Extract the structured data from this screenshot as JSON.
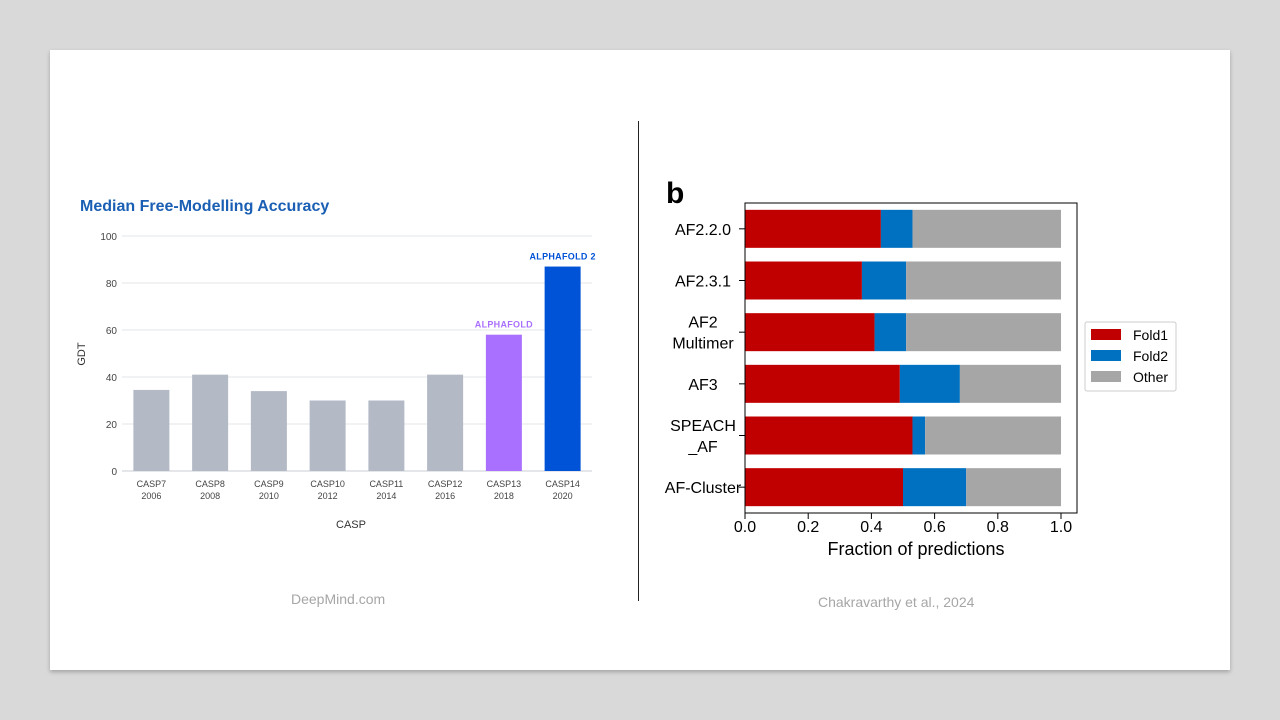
{
  "slide": {
    "left_caption": "DeepMind.com",
    "right_caption": "Chakravarthy et al., 2024"
  },
  "chart_data": [
    {
      "type": "bar",
      "title": "Median Free-Modelling Accuracy",
      "xlabel": "CASP",
      "ylabel": "GDT",
      "ylim": [
        0,
        100
      ],
      "yticks": [
        "0",
        "20",
        "40",
        "60",
        "80",
        "100"
      ],
      "categories": [
        [
          "CASP7",
          "2006"
        ],
        [
          "CASP8",
          "2008"
        ],
        [
          "CASP9",
          "2010"
        ],
        [
          "CASP10",
          "2012"
        ],
        [
          "CASP11",
          "2014"
        ],
        [
          "CASP12",
          "2016"
        ],
        [
          "CASP13",
          "2018"
        ],
        [
          "CASP14",
          "2020"
        ]
      ],
      "values": [
        34.5,
        41,
        34,
        30,
        30,
        41,
        58,
        87
      ],
      "bar_colors": [
        "#b3bac6",
        "#b3bac6",
        "#b3bac6",
        "#b3bac6",
        "#b3bac6",
        "#b3bac6",
        "#a970ff",
        "#0053d6"
      ],
      "annotations": [
        {
          "category_index": 6,
          "text": "ALPHAFOLD",
          "color": "#a970ff"
        },
        {
          "category_index": 7,
          "text": "ALPHAFOLD 2",
          "color": "#0053d6"
        }
      ],
      "title_color": "#1a5fb4"
    },
    {
      "type": "bar",
      "orientation": "horizontal",
      "stacked": true,
      "panel_label": "b",
      "xlabel": "Fraction of predictions",
      "xlim": [
        0,
        1
      ],
      "xticks": [
        "0.0",
        "0.2",
        "0.4",
        "0.6",
        "0.8",
        "1.0"
      ],
      "categories": [
        [
          "AF2.2.0"
        ],
        [
          "AF2.3.1"
        ],
        [
          "AF2",
          "Multimer"
        ],
        [
          "AF3"
        ],
        [
          "SPEACH",
          "_AF"
        ],
        [
          "AF-Cluster"
        ]
      ],
      "series": [
        {
          "name": "Fold1",
          "color": "#c00000",
          "values": [
            0.43,
            0.37,
            0.41,
            0.49,
            0.53,
            0.5
          ]
        },
        {
          "name": "Fold2",
          "color": "#0070c0",
          "values": [
            0.1,
            0.14,
            0.1,
            0.19,
            0.04,
            0.2
          ]
        },
        {
          "name": "Other",
          "color": "#a6a6a6",
          "values": [
            0.47,
            0.49,
            0.49,
            0.32,
            0.43,
            0.3
          ]
        }
      ],
      "legend": "right"
    }
  ]
}
